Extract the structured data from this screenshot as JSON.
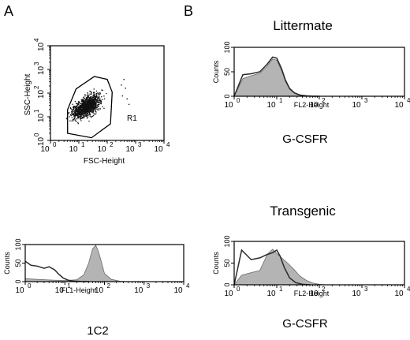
{
  "panels": {
    "a": "A",
    "b": "B"
  },
  "colors": {
    "axis": "#000000",
    "fill": "#b4b4b4",
    "outline": "#2a2a2a",
    "dots": "#111111"
  },
  "chart_data": [
    {
      "id": "scatter",
      "type": "scatter",
      "title": "",
      "xlabel": "FSC-Height",
      "ylabel": "SSC-Height",
      "xscale": "log",
      "yscale": "log",
      "xlim": [
        1,
        10000
      ],
      "ylim": [
        1,
        10000
      ],
      "tick_labels": [
        "10",
        "0",
        "10",
        "1",
        "10",
        "2",
        "10",
        "3",
        "10",
        "4"
      ],
      "gate_label": "R1",
      "gate": [
        [
          4,
          2
        ],
        [
          28,
          1.3
        ],
        [
          130,
          5
        ],
        [
          150,
          110
        ],
        [
          100,
          380
        ],
        [
          35,
          500
        ],
        [
          8,
          150
        ],
        [
          4,
          20
        ]
      ],
      "cluster": {
        "x_center": 18,
        "y_center": 28,
        "x_spread_decades": 0.32,
        "y_spread_decades": 0.32,
        "n": 1300
      },
      "outliers": [
        [
          330,
          80
        ],
        [
          420,
          170
        ],
        [
          480,
          60
        ],
        [
          370,
          400
        ],
        [
          560,
          35
        ],
        [
          300,
          230
        ]
      ]
    },
    {
      "id": "littermate",
      "type": "area",
      "title": "Littermate",
      "xlabel": "FL2-Height",
      "ylabel": "Counts",
      "xscale": "log",
      "xlim": [
        1,
        10000
      ],
      "ylim": [
        0,
        100
      ],
      "yticks": [
        "0",
        "50",
        "100"
      ],
      "footer": "G-CSFR",
      "series": [
        {
          "style": "filled",
          "x": [
            1,
            1.6,
            2.5,
            4,
            6,
            8,
            10,
            13,
            16,
            20,
            26,
            35,
            50,
            70,
            100
          ],
          "y": [
            0,
            36,
            42,
            47,
            62,
            76,
            74,
            52,
            30,
            14,
            6,
            2,
            0.6,
            0,
            0
          ]
        },
        {
          "style": "outline",
          "x": [
            1,
            1.6,
            2.5,
            4,
            6,
            8,
            10,
            13,
            16,
            20,
            26,
            35,
            50,
            70,
            100
          ],
          "y": [
            0,
            44,
            46,
            50,
            66,
            80,
            78,
            56,
            33,
            16,
            7,
            2.5,
            0.8,
            0,
            0
          ]
        }
      ]
    },
    {
      "id": "1c2",
      "type": "area",
      "title": "",
      "xlabel": "FL1-Height",
      "ylabel": "Counts",
      "xscale": "log",
      "xlim": [
        1,
        10000
      ],
      "ylim": [
        0,
        100
      ],
      "yticks": [
        "0",
        "50",
        "100"
      ],
      "footer": "1C2",
      "series": [
        {
          "style": "filled",
          "x": [
            1,
            2,
            5,
            10,
            20,
            30,
            40,
            50,
            60,
            70,
            85,
            100,
            150,
            250,
            400
          ],
          "y": [
            8,
            6,
            4,
            3,
            5,
            18,
            50,
            88,
            98,
            82,
            50,
            22,
            6,
            1,
            0
          ]
        },
        {
          "style": "outline",
          "x": [
            1,
            1.4,
            2,
            3,
            4,
            5.5,
            7,
            9,
            12,
            16,
            25,
            40
          ],
          "y": [
            55,
            44,
            42,
            36,
            40,
            32,
            20,
            10,
            4,
            1.5,
            0.5,
            0
          ]
        }
      ]
    },
    {
      "id": "transgenic",
      "type": "area",
      "title": "Transgenic",
      "xlabel": "FL2-Height",
      "ylabel": "Counts",
      "xscale": "log",
      "xlim": [
        1,
        10000
      ],
      "ylim": [
        0,
        100
      ],
      "yticks": [
        "0",
        "50",
        "100"
      ],
      "footer": "G-CSFR",
      "series": [
        {
          "style": "filled",
          "x": [
            1,
            1.5,
            2.5,
            4,
            6,
            8,
            10,
            13,
            18,
            25,
            35,
            50,
            70,
            100,
            150
          ],
          "y": [
            0,
            22,
            28,
            33,
            70,
            82,
            72,
            62,
            50,
            36,
            20,
            10,
            4,
            1,
            0
          ]
        },
        {
          "style": "outline",
          "x": [
            1,
            1.5,
            2.5,
            4,
            6,
            8,
            10,
            12,
            15,
            20,
            28,
            40,
            60
          ],
          "y": [
            0,
            80,
            58,
            62,
            70,
            74,
            80,
            66,
            40,
            16,
            5,
            1,
            0
          ]
        }
      ]
    }
  ]
}
